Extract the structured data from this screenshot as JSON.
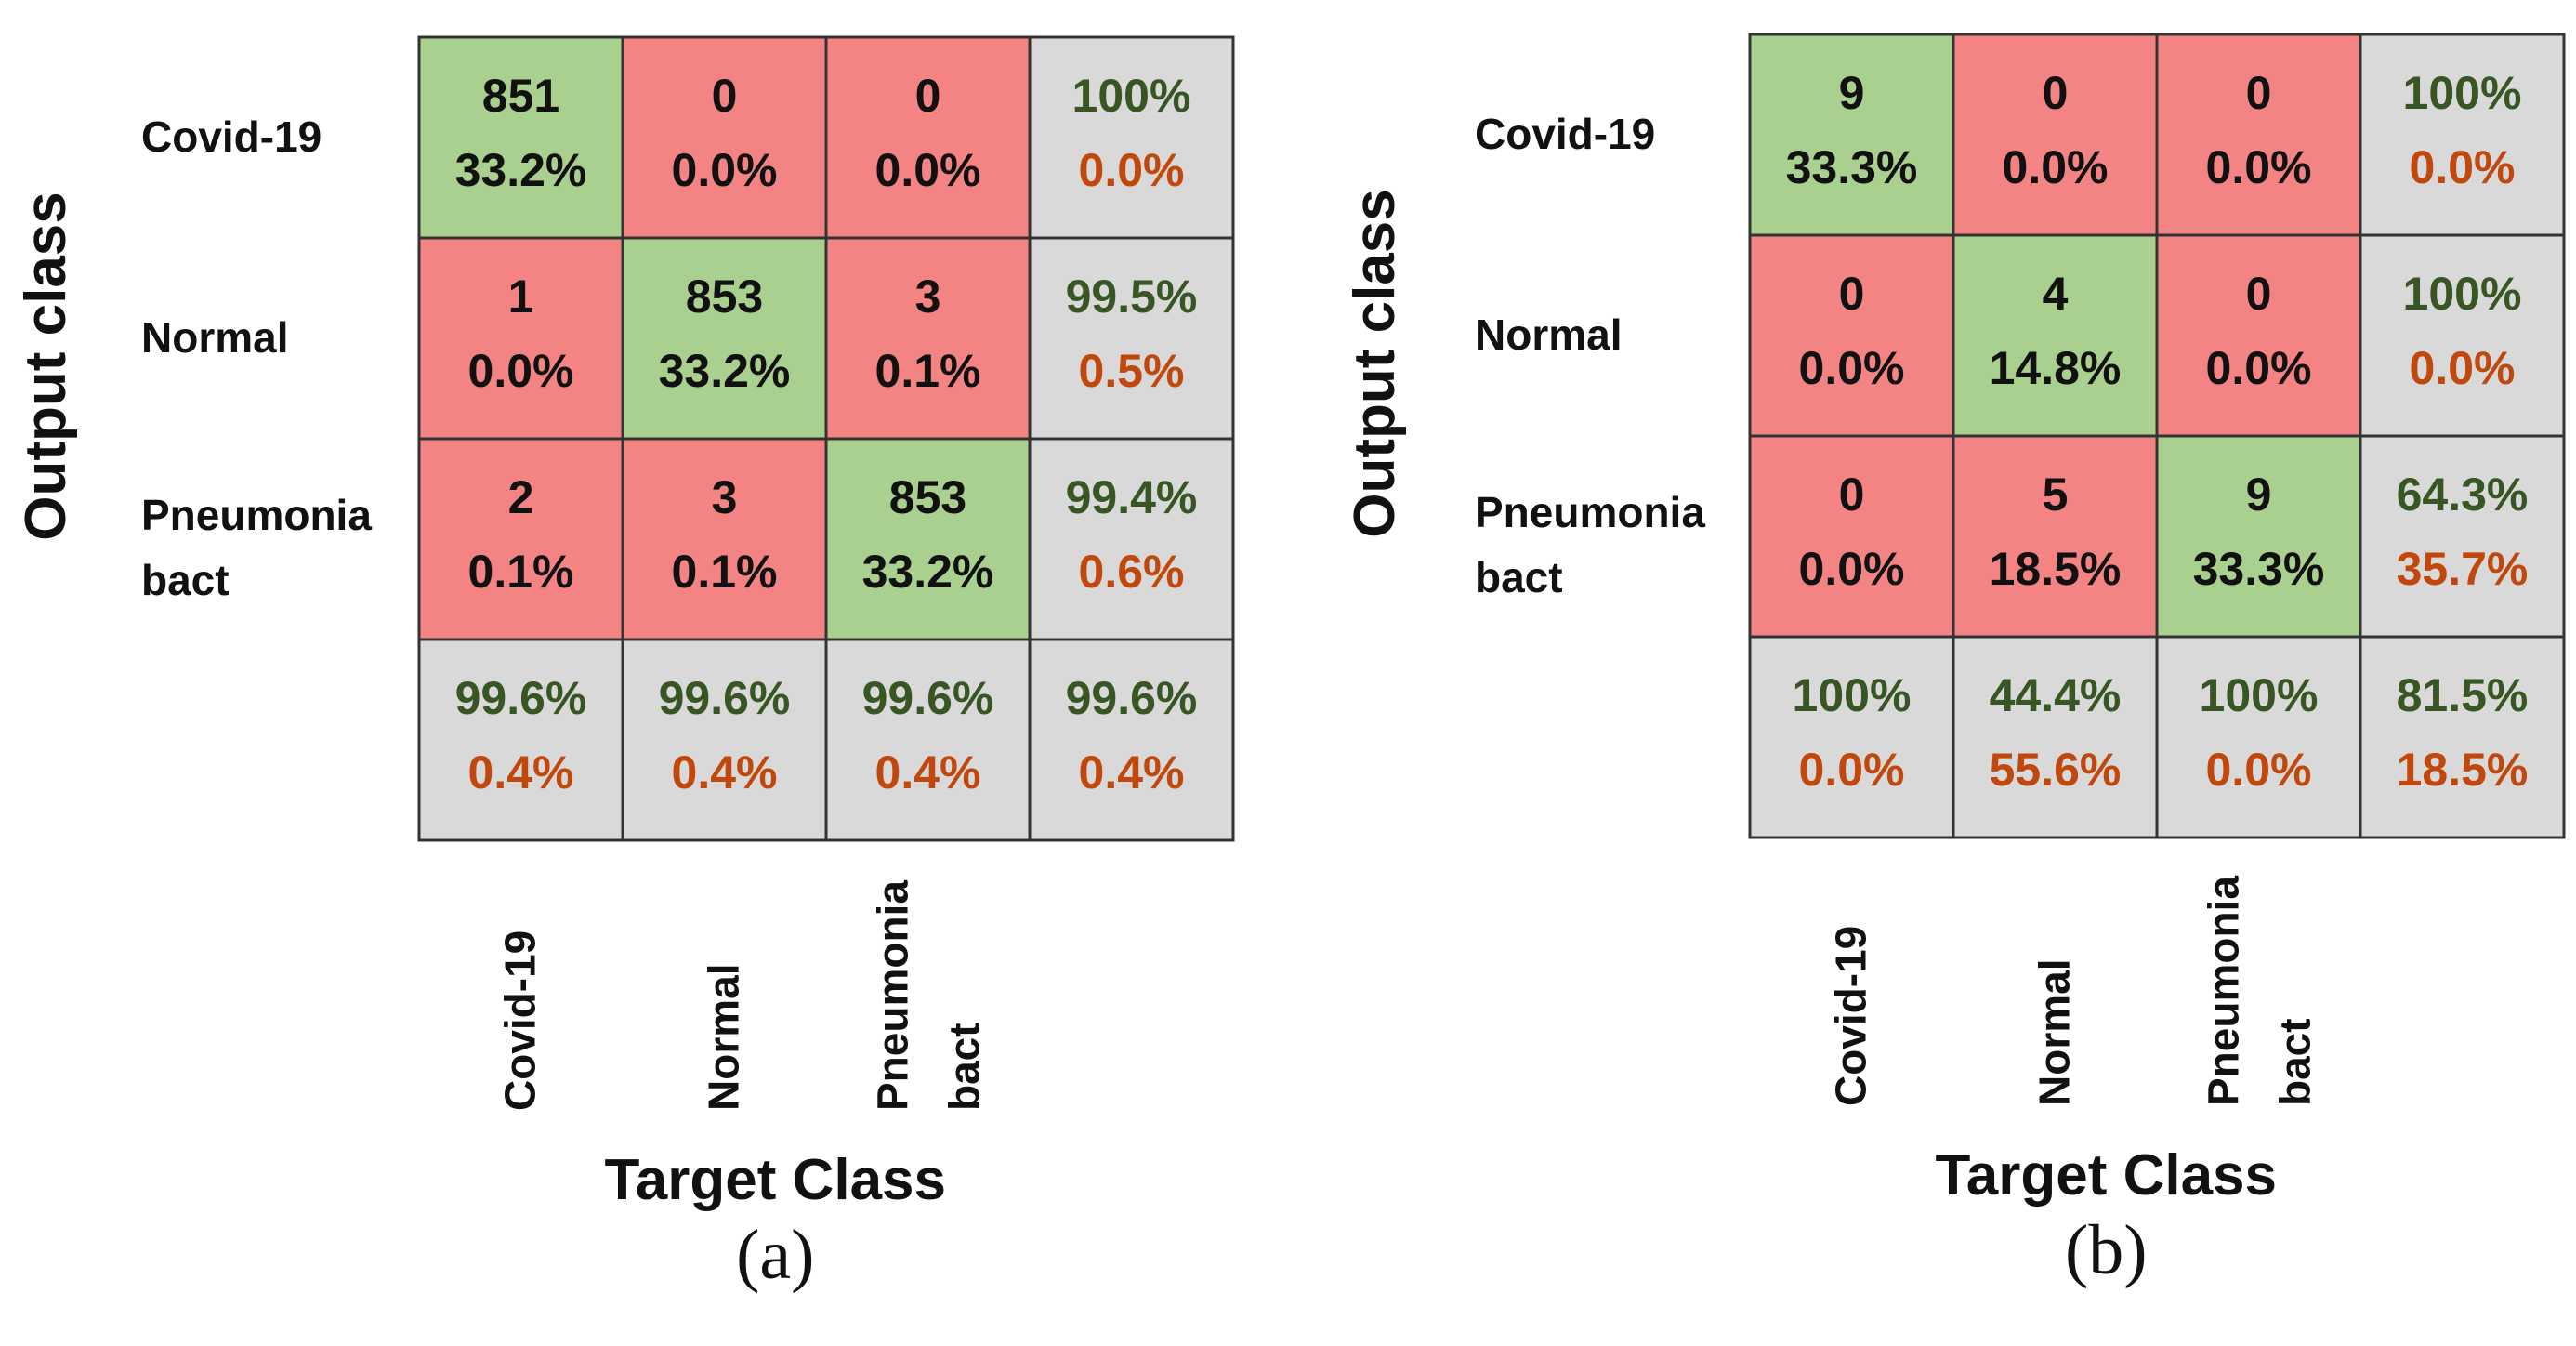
{
  "colors": {
    "correct_fill": "#a9d08e",
    "error_fill": "#f48483",
    "summary_fill": "#d9d9d9",
    "grid_line": "#333333",
    "text_count": "#111111",
    "text_good": "#375623",
    "text_bad": "#c0480c"
  },
  "chart_data": [
    {
      "type": "table",
      "panel_label": "(a)",
      "ylabel": "Output class",
      "xlabel": "Target Class",
      "row_labels": [
        "Covid-19",
        "Normal",
        "Pneumonia bact"
      ],
      "col_labels": [
        "Covid-19",
        "Normal",
        "Pneumonia bact"
      ],
      "cells": [
        [
          {
            "count": "851",
            "pct": "33.2%"
          },
          {
            "count": "0",
            "pct": "0.0%"
          },
          {
            "count": "0",
            "pct": "0.0%"
          }
        ],
        [
          {
            "count": "1",
            "pct": "0.0%"
          },
          {
            "count": "853",
            "pct": "33.2%"
          },
          {
            "count": "3",
            "pct": "0.1%"
          }
        ],
        [
          {
            "count": "2",
            "pct": "0.1%"
          },
          {
            "count": "3",
            "pct": "0.1%"
          },
          {
            "count": "853",
            "pct": "33.2%"
          }
        ]
      ],
      "row_summary": [
        {
          "good": "100%",
          "bad": "0.0%"
        },
        {
          "good": "99.5%",
          "bad": "0.5%"
        },
        {
          "good": "99.4%",
          "bad": "0.6%"
        }
      ],
      "col_summary": [
        {
          "good": "99.6%",
          "bad": "0.4%"
        },
        {
          "good": "99.6%",
          "bad": "0.4%"
        },
        {
          "good": "99.6%",
          "bad": "0.4%"
        }
      ],
      "overall": {
        "good": "99.6%",
        "bad": "0.4%"
      }
    },
    {
      "type": "table",
      "panel_label": "(b)",
      "ylabel": "Output class",
      "xlabel": "Target Class",
      "row_labels": [
        "Covid-19",
        "Normal",
        "Pneumonia bact"
      ],
      "col_labels": [
        "Covid-19",
        "Normal",
        "Pneumonia bact"
      ],
      "cells": [
        [
          {
            "count": "9",
            "pct": "33.3%"
          },
          {
            "count": "0",
            "pct": "0.0%"
          },
          {
            "count": "0",
            "pct": "0.0%"
          }
        ],
        [
          {
            "count": "0",
            "pct": "0.0%"
          },
          {
            "count": "4",
            "pct": "14.8%"
          },
          {
            "count": "0",
            "pct": "0.0%"
          }
        ],
        [
          {
            "count": "0",
            "pct": "0.0%"
          },
          {
            "count": "5",
            "pct": "18.5%"
          },
          {
            "count": "9",
            "pct": "33.3%"
          }
        ]
      ],
      "row_summary": [
        {
          "good": "100%",
          "bad": "0.0%"
        },
        {
          "good": "100%",
          "bad": "0.0%"
        },
        {
          "good": "64.3%",
          "bad": "35.7%"
        }
      ],
      "col_summary": [
        {
          "good": "100%",
          "bad": "0.0%"
        },
        {
          "good": "44.4%",
          "bad": "55.6%"
        },
        {
          "good": "100%",
          "bad": "0.0%"
        }
      ],
      "overall": {
        "good": "81.5%",
        "bad": "18.5%"
      }
    }
  ]
}
